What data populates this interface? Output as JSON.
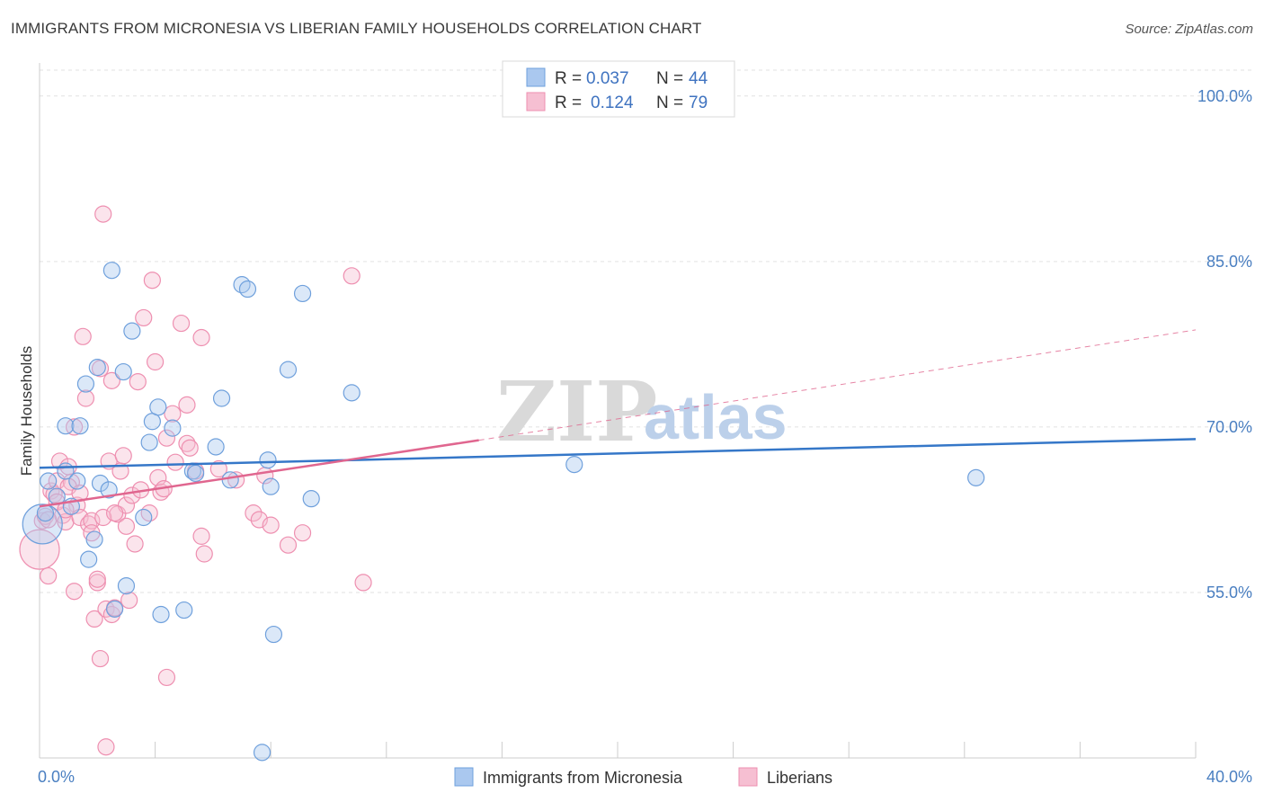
{
  "title": "IMMIGRANTS FROM MICRONESIA VS LIBERIAN FAMILY HOUSEHOLDS CORRELATION CHART",
  "source": "Source: ZipAtlas.com",
  "watermark": {
    "part1": "ZIP",
    "part2": "atlas"
  },
  "colors": {
    "blue": "#6fa0dc",
    "blue_fill": "#aac8ef",
    "blue_line": "#3577c8",
    "pink": "#ee8fb0",
    "pink_fill": "#f6bfd2",
    "pink_line": "#e0668f",
    "tick": "#4a7fc1",
    "grid": "#e2e2e2"
  },
  "legend": {
    "rows": [
      {
        "r_label": "R =",
        "r_value": "0.037",
        "n_label": "N =",
        "n_value": "44"
      },
      {
        "r_label": "R =",
        "r_value": "0.124",
        "n_label": "N =",
        "n_value": "79"
      }
    ]
  },
  "chart_data": {
    "type": "scatter",
    "title": "IMMIGRANTS FROM MICRONESIA VS LIBERIAN FAMILY HOUSEHOLDS CORRELATION CHART",
    "xlabel": "",
    "ylabel": "Family Households",
    "xlim": [
      0,
      40
    ],
    "ylim": [
      40,
      103
    ],
    "x_tick_labels": [
      "0.0%",
      "40.0%"
    ],
    "y_ticks": [
      55,
      70,
      85,
      100
    ],
    "y_tick_labels": [
      "55.0%",
      "70.0%",
      "85.0%",
      "100.0%"
    ],
    "grid": true,
    "legend_position": "top-center",
    "series": [
      {
        "name": "Immigrants from Micronesia",
        "R": 0.037,
        "N": 44,
        "trend": {
          "x0": 0,
          "y0": 66.3,
          "x1": 40,
          "y1": 68.9
        },
        "points": [
          [
            0.1,
            61.2,
            22
          ],
          [
            0.3,
            65.1,
            10
          ],
          [
            0.6,
            63.7,
            10
          ],
          [
            0.9,
            66.0,
            10
          ],
          [
            1.3,
            65.1,
            10
          ],
          [
            0.9,
            70.1,
            10
          ],
          [
            1.4,
            70.1,
            10
          ],
          [
            1.6,
            73.9,
            10
          ],
          [
            2.0,
            75.4,
            10
          ],
          [
            2.5,
            84.2,
            10
          ],
          [
            2.1,
            64.9,
            10
          ],
          [
            2.4,
            64.3,
            10
          ],
          [
            1.7,
            58.0,
            10
          ],
          [
            1.9,
            59.8,
            10
          ],
          [
            2.6,
            53.5,
            10
          ],
          [
            3.0,
            55.6,
            10
          ],
          [
            3.2,
            78.7,
            10
          ],
          [
            2.9,
            75.0,
            10
          ],
          [
            3.6,
            61.8,
            10
          ],
          [
            3.8,
            68.6,
            10
          ],
          [
            3.9,
            70.5,
            10
          ],
          [
            4.1,
            71.8,
            10
          ],
          [
            4.6,
            69.9,
            10
          ],
          [
            4.2,
            53.0,
            10
          ],
          [
            5.0,
            53.4,
            10
          ],
          [
            5.3,
            66.0,
            10
          ],
          [
            5.4,
            65.8,
            10
          ],
          [
            6.1,
            68.2,
            10
          ],
          [
            6.3,
            72.6,
            10
          ],
          [
            6.6,
            65.2,
            10
          ],
          [
            7.0,
            82.9,
            10
          ],
          [
            7.2,
            82.5,
            10
          ],
          [
            7.7,
            40.5,
            10
          ],
          [
            7.9,
            67.0,
            10
          ],
          [
            8.0,
            64.6,
            10
          ],
          [
            8.1,
            51.2,
            10
          ],
          [
            8.6,
            75.2,
            10
          ],
          [
            9.1,
            82.1,
            10
          ],
          [
            9.4,
            63.5,
            10
          ],
          [
            10.8,
            73.1,
            10
          ],
          [
            18.5,
            66.6,
            10
          ],
          [
            32.4,
            65.4,
            10
          ],
          [
            0.2,
            62.2,
            10
          ],
          [
            1.1,
            62.8,
            10
          ]
        ]
      },
      {
        "name": "Liberians",
        "R": 0.124,
        "N": 79,
        "trend": {
          "x0": 0,
          "y0": 62.8,
          "x1": 15.2,
          "y1": 68.8
        },
        "trend_dash": {
          "x0": 15.2,
          "y0": 68.8,
          "x1": 40,
          "y1": 78.8
        },
        "points": [
          [
            0.0,
            58.9,
            22
          ],
          [
            0.1,
            61.5,
            10
          ],
          [
            0.2,
            61.9,
            10
          ],
          [
            0.3,
            56.5,
            10
          ],
          [
            0.4,
            64.2,
            10
          ],
          [
            0.5,
            63.9,
            10
          ],
          [
            0.6,
            65.1,
            10
          ],
          [
            0.7,
            66.9,
            10
          ],
          [
            0.8,
            62.0,
            10
          ],
          [
            0.9,
            61.4,
            10
          ],
          [
            1.0,
            66.4,
            10
          ],
          [
            1.1,
            65.0,
            10
          ],
          [
            1.2,
            70.0,
            10
          ],
          [
            1.2,
            55.1,
            10
          ],
          [
            1.3,
            62.9,
            10
          ],
          [
            1.4,
            61.8,
            10
          ],
          [
            1.5,
            78.2,
            10
          ],
          [
            1.6,
            72.6,
            10
          ],
          [
            1.7,
            61.2,
            10
          ],
          [
            1.8,
            61.5,
            10
          ],
          [
            1.9,
            52.6,
            10
          ],
          [
            2.0,
            55.9,
            10
          ],
          [
            2.0,
            56.2,
            10
          ],
          [
            2.1,
            75.3,
            10
          ],
          [
            2.1,
            49.0,
            10
          ],
          [
            2.2,
            89.3,
            10
          ],
          [
            2.3,
            53.5,
            10
          ],
          [
            2.3,
            41.0,
            10
          ],
          [
            2.4,
            66.9,
            10
          ],
          [
            2.5,
            74.2,
            10
          ],
          [
            2.5,
            53.0,
            10
          ],
          [
            2.6,
            53.6,
            10
          ],
          [
            2.7,
            62.1,
            10
          ],
          [
            2.8,
            66.0,
            10
          ],
          [
            2.9,
            67.4,
            10
          ],
          [
            3.0,
            62.9,
            10
          ],
          [
            3.1,
            54.3,
            10
          ],
          [
            3.2,
            63.8,
            10
          ],
          [
            3.3,
            59.4,
            10
          ],
          [
            3.4,
            74.1,
            10
          ],
          [
            3.6,
            79.9,
            10
          ],
          [
            3.8,
            62.2,
            10
          ],
          [
            3.9,
            83.3,
            10
          ],
          [
            4.0,
            75.9,
            10
          ],
          [
            4.1,
            65.4,
            10
          ],
          [
            4.2,
            64.1,
            10
          ],
          [
            4.4,
            69.0,
            10
          ],
          [
            4.4,
            47.3,
            10
          ],
          [
            4.6,
            71.2,
            10
          ],
          [
            4.7,
            66.8,
            10
          ],
          [
            4.9,
            79.4,
            10
          ],
          [
            5.1,
            72.0,
            10
          ],
          [
            5.1,
            68.5,
            10
          ],
          [
            5.2,
            68.1,
            10
          ],
          [
            5.4,
            66.0,
            10
          ],
          [
            5.6,
            78.1,
            10
          ],
          [
            5.6,
            60.1,
            10
          ],
          [
            5.7,
            58.5,
            10
          ],
          [
            6.2,
            66.2,
            10
          ],
          [
            6.8,
            65.2,
            10
          ],
          [
            7.4,
            62.2,
            10
          ],
          [
            7.6,
            61.6,
            10
          ],
          [
            7.8,
            65.6,
            10
          ],
          [
            8.0,
            61.1,
            10
          ],
          [
            8.6,
            59.3,
            10
          ],
          [
            9.1,
            60.4,
            10
          ],
          [
            10.8,
            83.7,
            10
          ],
          [
            11.2,
            55.9,
            10
          ],
          [
            0.3,
            61.6,
            10
          ],
          [
            0.6,
            63.2,
            10
          ],
          [
            1.0,
            64.6,
            10
          ],
          [
            1.4,
            64.0,
            10
          ],
          [
            1.8,
            60.4,
            10
          ],
          [
            2.2,
            61.8,
            10
          ],
          [
            2.6,
            62.2,
            10
          ],
          [
            3.0,
            61.0,
            10
          ],
          [
            3.5,
            64.3,
            10
          ],
          [
            4.3,
            64.4,
            10
          ],
          [
            0.9,
            62.5,
            10
          ]
        ]
      }
    ]
  },
  "bottom_legend": [
    "Immigrants from Micronesia",
    "Liberians"
  ]
}
